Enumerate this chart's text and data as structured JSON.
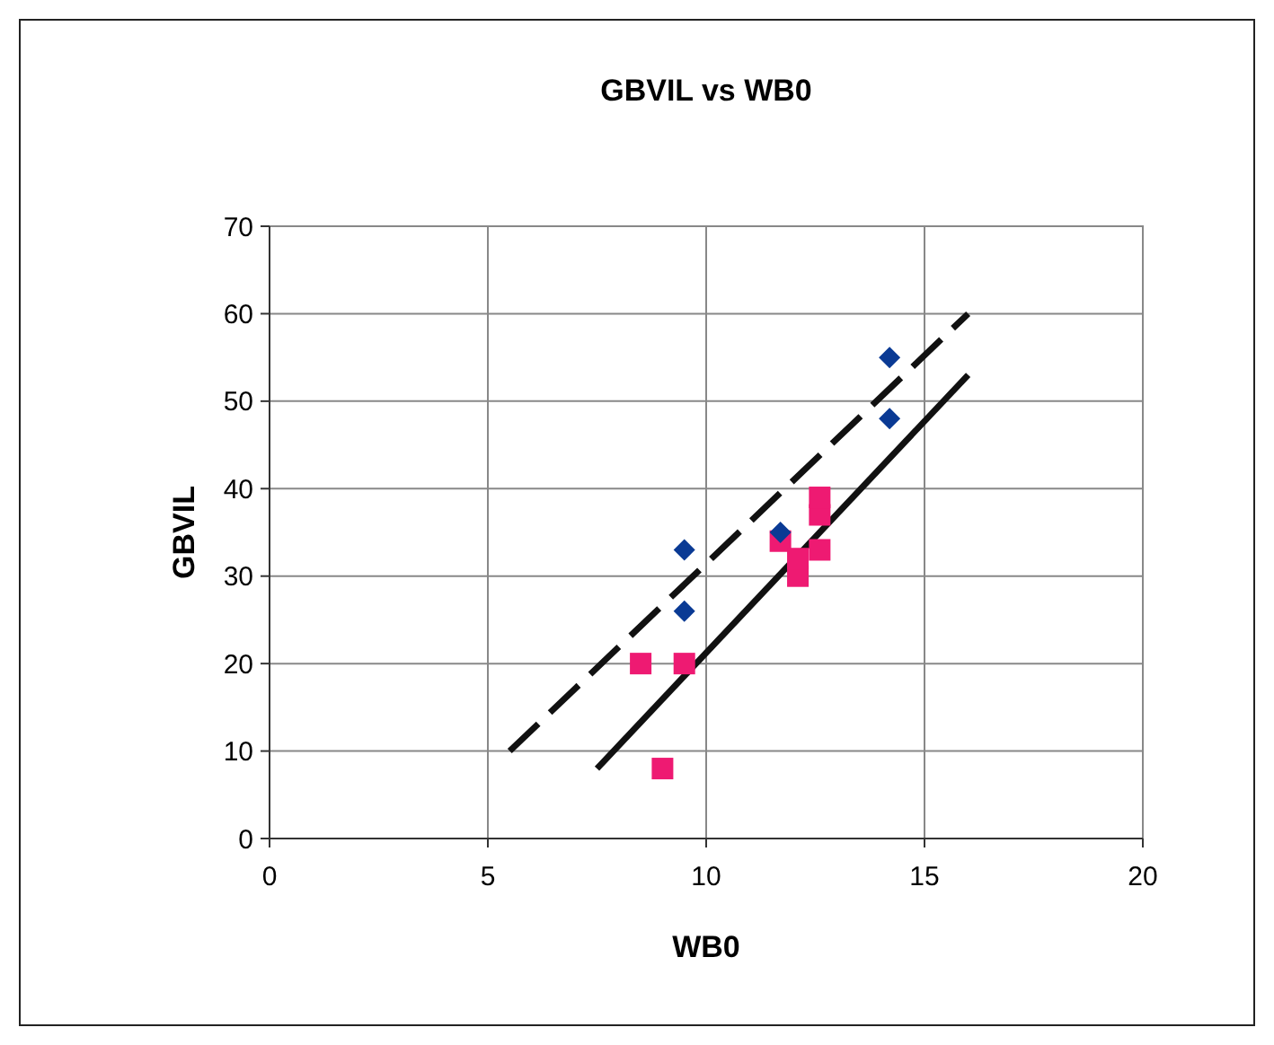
{
  "chart_data": {
    "type": "scatter",
    "title": "GBVIL vs WB0",
    "xlabel": "WB0",
    "ylabel": "GBVIL",
    "xlim": [
      0,
      20
    ],
    "xticks": [
      0,
      5,
      10,
      15,
      20
    ],
    "ylim": [
      0,
      70
    ],
    "yticks": [
      0,
      10,
      20,
      30,
      40,
      50,
      60,
      70
    ],
    "grid": true,
    "series": [
      {
        "marker": "diamond",
        "color": "#0a3a94",
        "x": [
          9.5,
          9.5,
          11.7,
          14.2,
          14.2
        ],
        "values": [
          33,
          26,
          35,
          55,
          48
        ]
      },
      {
        "marker": "square",
        "color": "#ee1a72",
        "x": [
          8.5,
          9.5,
          9,
          11.7,
          12.1,
          12.1,
          12.6,
          12.6,
          12.6
        ],
        "values": [
          20,
          20,
          8,
          34,
          30,
          32,
          33,
          37,
          39
        ]
      },
      {
        "type": "line",
        "line_style": "dashed",
        "marker": "none",
        "color": "#111111",
        "x": [
          5.5,
          16
        ],
        "values": [
          10,
          60
        ]
      },
      {
        "type": "line",
        "line_style": "solid",
        "marker": "none",
        "color": "#111111",
        "x": [
          7.5,
          16
        ],
        "values": [
          8,
          53
        ]
      }
    ]
  }
}
